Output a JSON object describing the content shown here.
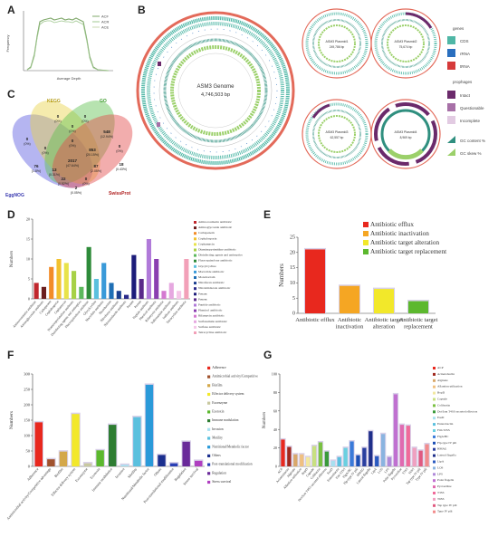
{
  "panels": {
    "A": {
      "label": "A",
      "legend": [
        "ACF",
        "ACR",
        "ACE"
      ],
      "ylabel": "Frequency",
      "xlabel": "Average Depth"
    },
    "B": {
      "label": "B",
      "genome_title": "ASM3 Genome",
      "genome_size": "4,746,503 bp",
      "plasmids": [
        {
          "title": "ASM3 Plasmid1",
          "size": "249,786 bp"
        },
        {
          "title": "ASM3 Plasmid2",
          "size": "75,674 bp"
        },
        {
          "title": "ASM3 Plasmid3",
          "size": "62,557 bp"
        },
        {
          "title": "ASM3 Plasmid4",
          "size": "8,969 bp"
        }
      ],
      "legend": {
        "genes_title": "genes",
        "genes": [
          {
            "label": "CDS",
            "color": "#4fb7a6"
          },
          {
            "label": "rRNA",
            "color": "#2a6fbf"
          },
          {
            "label": "tRNA",
            "color": "#d63a3a"
          }
        ],
        "prophage_title": "prophages",
        "prophages": [
          {
            "label": "Intact",
            "color": "#6b2a6b"
          },
          {
            "label": "Questionable",
            "color": "#a770a7"
          },
          {
            "label": "Incomplete",
            "color": "#e2cbe2"
          }
        ],
        "gc": [
          {
            "label": "GC content %",
            "color": "#2f8f7f"
          },
          {
            "label": "GC skew %",
            "color": "#9bd06a"
          }
        ]
      }
    },
    "C": {
      "label": "C",
      "sets": [
        {
          "name": "KEGG",
          "color": "#e8d34a"
        },
        {
          "name": "GO",
          "color": "#5fc24f"
        },
        {
          "name": "EggNOG",
          "color": "#5a5ae0"
        },
        {
          "name": "SwissProt",
          "color": "#e24a4a"
        }
      ],
      "regions": [
        {
          "id": "kegg_only",
          "count": "0",
          "pct": "(0%)"
        },
        {
          "id": "go_only",
          "count": "0",
          "pct": "(0%)"
        },
        {
          "id": "kegg_go",
          "count": "0",
          "pct": "(0%)"
        },
        {
          "id": "egg_only",
          "count": "0",
          "pct": "(0%)"
        },
        {
          "id": "go_swiss",
          "count": "0",
          "pct": "(0%)"
        },
        {
          "id": "kegg_egg",
          "count": "0",
          "pct": "(0%)"
        },
        {
          "id": "swiss_only",
          "count": "0",
          "pct": "(0%)"
        },
        {
          "id": "go_egg_swiss",
          "count": "548",
          "pct": "(12.94%)"
        },
        {
          "id": "kegg_go_swiss",
          "count": "853",
          "pct": "(20.15%)"
        },
        {
          "id": "all4",
          "count": "2017",
          "pct": "(47.64%)"
        },
        {
          "id": "kegg_egg_swiss",
          "count": "87",
          "pct": "(2.05%)"
        },
        {
          "id": "swiss_egg",
          "count": "18",
          "pct": "(0.43%)"
        },
        {
          "id": "kegg_swiss",
          "count": "13",
          "pct": "(0.31%)"
        },
        {
          "id": "kegg_go_egg",
          "count": "76",
          "pct": "(1.8%)"
        },
        {
          "id": "egg_swiss_only",
          "count": "22",
          "pct": "(0.52%)"
        },
        {
          "id": "egg_kegg_swiss2",
          "count": "2",
          "pct": "(0.05%)"
        },
        {
          "id": "misc",
          "count": "0",
          "pct": "(0%)"
        }
      ]
    },
    "D": {
      "label": "D",
      "chart_data": {
        "type": "bar",
        "ylabel": "Numbers",
        "ylim": [
          0,
          20
        ],
        "yticks": [
          0,
          5,
          10,
          15,
          20
        ],
        "categories": [
          "Aminocoumarin antibiotic",
          "Aminoglycoside antibiotic",
          "Carbapenem",
          "Cephalosporin",
          "Cephamycin",
          "Diaminopyrimidine antibiotic",
          "Disinfecting agents and antiseptics",
          "Fluoroquinolone antibiotic",
          "Glycylcycline",
          "Macrolide antibiotic",
          "Monobactam",
          "Nitrofuran antibiotic",
          "Nitroimidazole antibiotic",
          "Penam",
          "Penem",
          "Peptide antibiotic",
          "Phenicol antibiotic",
          "Rifamycin antibiotic",
          "Sulfonamide antibiotic",
          "Sulfone antibiotic",
          "Tetracycline antibiotic"
        ],
        "values": [
          4,
          3,
          8,
          10,
          9,
          7,
          3,
          13,
          5,
          9,
          4,
          2,
          1,
          11,
          5,
          15,
          10,
          2,
          4,
          2,
          10
        ],
        "colors": [
          "#c0272d",
          "#6b1e1e",
          "#f28c28",
          "#f2c12e",
          "#e8e34a",
          "#a7d147",
          "#5cb85c",
          "#2e8b3a",
          "#5bc0de",
          "#3a9ad9",
          "#1f6fb5",
          "#1b3f8f",
          "#2a2a8a",
          "#1c1c7a",
          "#5a2a8a",
          "#b07ad9",
          "#8a3fb0",
          "#d47ad0",
          "#e6a8e0",
          "#f5c6e8",
          "#f2a0b8"
        ]
      }
    },
    "E": {
      "label": "E",
      "chart_data": {
        "type": "bar",
        "ylabel": "Numbers",
        "ylim": [
          0,
          25
        ],
        "yticks": [
          0,
          5,
          10,
          15,
          20,
          25
        ],
        "categories": [
          "Antibiotic efflux",
          "Antibiotic inactivation",
          "Antibiotic target alteration",
          "Antibiotic target replacement"
        ],
        "xticklabels": [
          [
            "Antibiotic efflux"
          ],
          [
            "Antibiotic",
            "inactivation"
          ],
          [
            "Antibiotic target",
            "alteration"
          ],
          [
            "Antibiotic target",
            "replacement"
          ]
        ],
        "values": [
          21,
          9,
          8,
          4
        ],
        "colors": [
          "#e8281e",
          "#f5a623",
          "#f2e82a",
          "#5cb82e"
        ]
      }
    },
    "F": {
      "label": "F",
      "chart_data": {
        "type": "bar",
        "ylabel": "Numbers",
        "ylim": [
          0,
          300
        ],
        "yticks": [
          0,
          50,
          100,
          150,
          200,
          250,
          300
        ],
        "categories": [
          "Adherence",
          "Antimicrobial activity/Competitive advantage",
          "Biofilm",
          "Effector delivery system",
          "Exoenzyme",
          "Exotoxin",
          "Immune modulation",
          "Invasion",
          "Motility",
          "Nutritional/Metabolic factor",
          "Others",
          "Post-translational modification",
          "Regulation",
          "Stress survival"
        ],
        "legend_labels": [
          "Adherence",
          "Antimicrobial activity/Competitive advantage",
          "Biofilm",
          "Effector delivery system",
          "Exoenzyme",
          "Exotoxin",
          "Immune modulation",
          "Invasion",
          "Motility",
          "Nutritional/Metabolic factor",
          "Others",
          "Post-translational modification",
          "Regulation",
          "Stress survival"
        ],
        "values": [
          143,
          23,
          48,
          170,
          10,
          52,
          135,
          5,
          160,
          265,
          37,
          10,
          80,
          18
        ],
        "colors": [
          "#e8281e",
          "#a0522d",
          "#d4a84a",
          "#f2e82a",
          "#c8c8a0",
          "#5cb82e",
          "#2e7d32",
          "#a8e0f0",
          "#5bc0de",
          "#2a9ad9",
          "#1b2f8f",
          "#2a3fb5",
          "#6a2a9a",
          "#b03fc0"
        ]
      }
    },
    "G": {
      "label": "G",
      "chart_data": {
        "type": "bar",
        "ylabel": "Numbers",
        "ylim": [
          0,
          100
        ],
        "yticks": [
          0,
          20,
          40,
          60,
          80,
          100
        ],
        "categories": [
          "ACP",
          "Acinetobactin",
          "Alginate",
          "Allantion utilization",
          "BopD",
          "Capsule",
          "Colibactin",
          "Dot/Icm T4SS secreted effectors",
          "EsaD",
          "Enterobactin",
          "Fim T2SS",
          "FlgA/BC",
          "Flp-type IV pili",
          "HMAG",
          "Lateral flagella",
          "LipA",
          "LOS",
          "LPS",
          "Polar flagella",
          "Pyoverdine",
          "T3SS",
          "T6SS",
          "Tap type IV pili",
          "Type IV pili"
        ],
        "values": [
          29,
          21,
          13,
          13,
          10,
          22,
          26,
          16,
          6,
          10,
          20,
          27,
          12,
          20,
          38,
          11,
          35,
          10,
          78,
          45,
          44,
          20,
          17,
          24
        ],
        "colors": [
          "#e8281e",
          "#a0281e",
          "#d9a86a",
          "#f0c080",
          "#f2e8a0",
          "#c8e080",
          "#7ac142",
          "#3a9a3a",
          "#a8e0f0",
          "#5bc0de",
          "#6ad0e0",
          "#3a7ad9",
          "#1b4fb5",
          "#2a3f9f",
          "#1f2f8a",
          "#2a5ac0",
          "#8ab4e0",
          "#b08ad9",
          "#c070d0",
          "#e06ab0",
          "#f06a9a",
          "#f0a0c0",
          "#e05a80",
          "#f28c8c"
        ]
      }
    }
  }
}
